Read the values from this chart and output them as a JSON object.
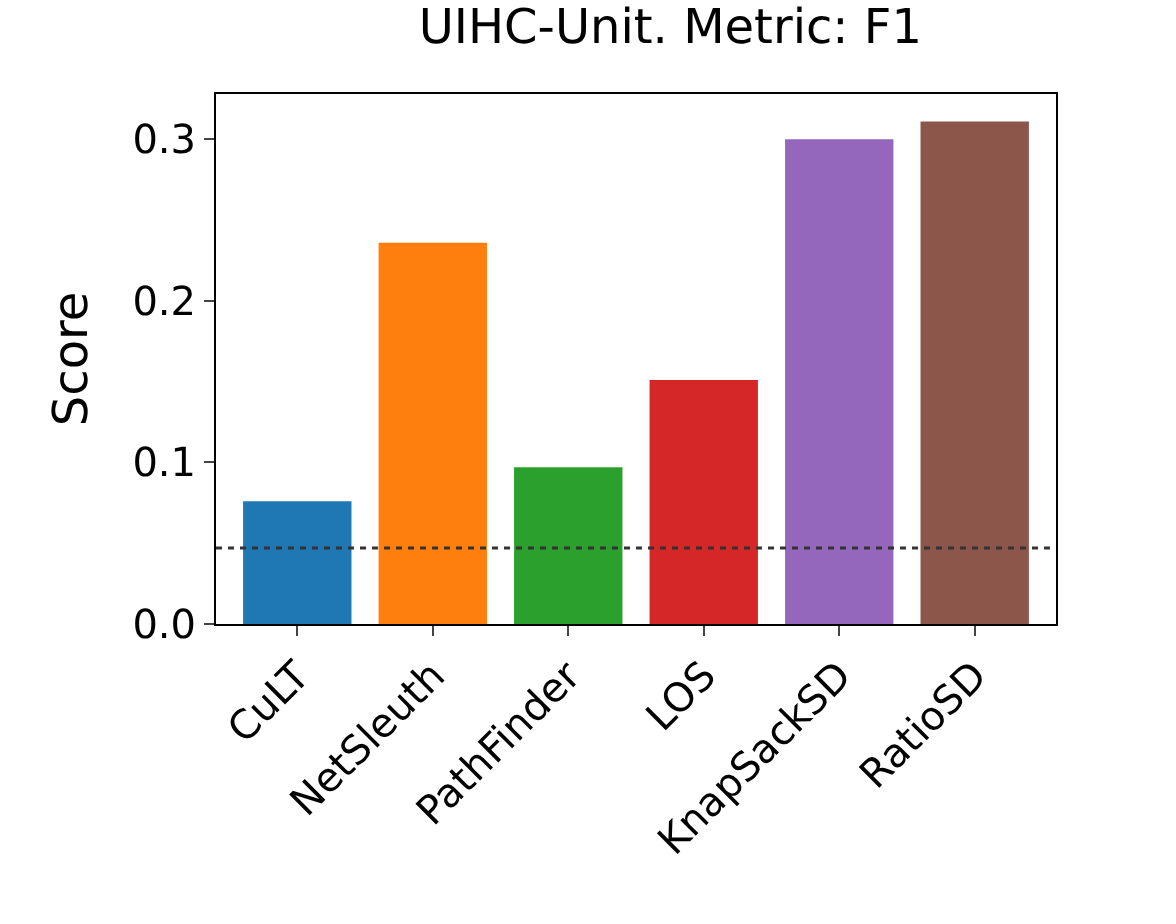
{
  "chart_data": {
    "type": "bar",
    "title": "UIHC-Unit. Metric: F1",
    "ylabel": "Score",
    "categories": [
      "CuLT",
      "NetSleuth",
      "PathFinder",
      "LOS",
      "KnapSackSD",
      "RatioSD"
    ],
    "values": [
      0.076,
      0.236,
      0.097,
      0.151,
      0.3,
      0.311
    ],
    "colors": [
      "#1f77b4",
      "#ff7f0e",
      "#2ca02c",
      "#d62728",
      "#9467bd",
      "#8c564b"
    ],
    "ylim": [
      0,
      0.328
    ],
    "yticks": [
      {
        "value": 0,
        "label": "0.0"
      },
      0.1,
      0.2,
      0.3
    ],
    "ref_lines": [
      {
        "axis": "y",
        "value": 0.047,
        "line_style": "dotted",
        "color": "#333333"
      }
    ]
  }
}
